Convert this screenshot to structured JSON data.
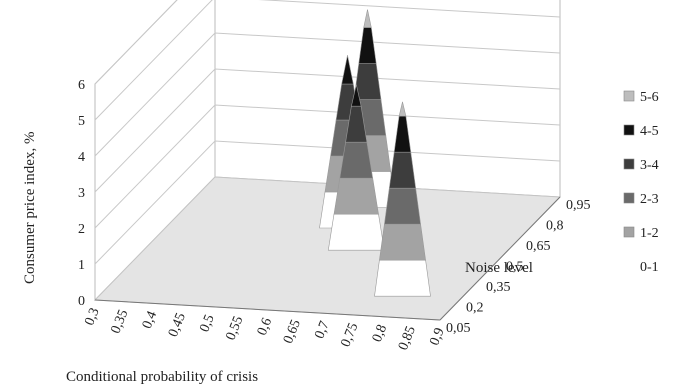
{
  "chart_data": {
    "type": "3d-surface",
    "title": "",
    "xlabel": "Conditional probability of crisis",
    "ylabel": "Noise level",
    "zlabel": "Consumer price index, %",
    "x_ticks": [
      "0,3",
      "0,35",
      "0,4",
      "0,45",
      "0,5",
      "0,55",
      "0,6",
      "0,65",
      "0,7",
      "0,75",
      "0,8",
      "0,85",
      "0,9"
    ],
    "y_ticks": [
      "0,05",
      "0,2",
      "0,35",
      "0,5",
      "0,65",
      "0,8",
      "0,95"
    ],
    "z_ticks": [
      "0",
      "1",
      "2",
      "3",
      "4",
      "5",
      "6"
    ],
    "zlim": [
      0,
      6
    ],
    "legend": {
      "placement": "right",
      "entries": [
        {
          "label": "5-6",
          "color": "#bdbdbd"
        },
        {
          "label": "4-5",
          "color": "#111111"
        },
        {
          "label": "3-4",
          "color": "#3d3d3d"
        },
        {
          "label": "2-3",
          "color": "#6a6a6a"
        },
        {
          "label": "1-2",
          "color": "#a3a3a3"
        },
        {
          "label": "0-1",
          "color": "#ffffff"
        }
      ]
    },
    "peaks": [
      {
        "x": 0.6,
        "y": 0.8,
        "value": 5.5
      },
      {
        "x": 0.6,
        "y": 0.65,
        "value": 4.8
      },
      {
        "x": 0.65,
        "y": 0.5,
        "value": 4.6
      },
      {
        "x": 0.8,
        "y": 0.2,
        "value": 5.4
      }
    ]
  }
}
